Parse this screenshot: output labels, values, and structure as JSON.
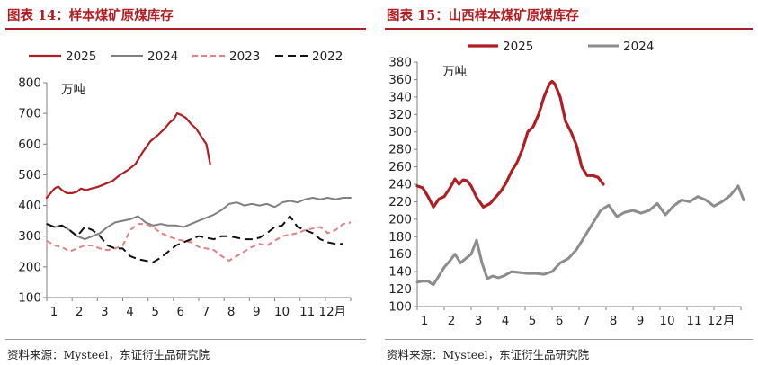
{
  "charts": [
    {
      "title": "图表 14：样本煤矿原煤库存",
      "source": "资料来源：Mysteel，东证衍生品研究院",
      "chart_data": {
        "type": "line",
        "unit_label": "万吨",
        "ylim": [
          100,
          800
        ],
        "yticks": [
          100,
          200,
          300,
          400,
          500,
          600,
          700,
          800
        ],
        "xlim": [
          1,
          13
        ],
        "xtick_labels": [
          "1",
          "2",
          "3",
          "4",
          "5",
          "6",
          "7",
          "8",
          "9",
          "10",
          "11",
          "12月"
        ],
        "grid": false,
        "legend_position": "top",
        "series": [
          {
            "name": "2025",
            "color": "#b01e23",
            "dash": "solid",
            "width": 2.2,
            "x": [
              1,
              1.15,
              1.3,
              1.45,
              1.6,
              1.8,
              2.0,
              2.2,
              2.35,
              2.55,
              2.75,
              3.0,
              3.3,
              3.6,
              3.9,
              4.2,
              4.5,
              4.8,
              5.1,
              5.4,
              5.65,
              5.85,
              6.0,
              6.15,
              6.3,
              6.5,
              6.7,
              6.9,
              7.1,
              7.3,
              7.45
            ],
            "y": [
              425,
              440,
              455,
              462,
              450,
              440,
              440,
              445,
              455,
              450,
              455,
              460,
              470,
              480,
              500,
              515,
              535,
              575,
              610,
              630,
              650,
              670,
              680,
              700,
              695,
              685,
              665,
              650,
              625,
              600,
              535
            ]
          },
          {
            "name": "2024",
            "color": "#7f7f7f",
            "dash": "solid",
            "width": 2,
            "x": [
              1,
              1.3,
              1.6,
              1.9,
              2.2,
              2.5,
              2.8,
              3.1,
              3.4,
              3.7,
              4.0,
              4.3,
              4.6,
              4.9,
              5.2,
              5.5,
              5.8,
              6.1,
              6.4,
              6.7,
              7.0,
              7.3,
              7.6,
              7.9,
              8.2,
              8.5,
              8.8,
              9.1,
              9.4,
              9.7,
              10.0,
              10.3,
              10.6,
              10.9,
              11.2,
              11.5,
              11.8,
              12.1,
              12.4,
              12.7,
              13.0
            ],
            "y": [
              340,
              330,
              335,
              320,
              300,
              290,
              300,
              310,
              330,
              345,
              350,
              355,
              365,
              345,
              335,
              340,
              335,
              335,
              330,
              340,
              350,
              360,
              370,
              385,
              405,
              410,
              400,
              405,
              400,
              405,
              395,
              410,
              415,
              410,
              420,
              425,
              420,
              425,
              420,
              425,
              425
            ]
          },
          {
            "name": "2023",
            "color": "#e08080",
            "dash": "6,4",
            "width": 2,
            "x": [
              1,
              1.3,
              1.6,
              1.9,
              2.2,
              2.5,
              2.8,
              3.1,
              3.4,
              3.7,
              4.0,
              4.3,
              4.6,
              4.9,
              5.2,
              5.5,
              5.8,
              6.1,
              6.4,
              6.7,
              7.0,
              7.3,
              7.6,
              7.9,
              8.2,
              8.5,
              8.8,
              9.1,
              9.4,
              9.7,
              10.0,
              10.3,
              10.6,
              10.9,
              11.2,
              11.5,
              11.8,
              12.1,
              12.4,
              12.7,
              13.0
            ],
            "y": [
              285,
              270,
              265,
              250,
              260,
              270,
              270,
              260,
              255,
              260,
              270,
              320,
              340,
              340,
              330,
              310,
              300,
              290,
              285,
              280,
              265,
              260,
              255,
              235,
              220,
              235,
              250,
              265,
              275,
              270,
              285,
              300,
              305,
              310,
              320,
              325,
              330,
              310,
              320,
              340,
              345
            ]
          },
          {
            "name": "2022",
            "color": "#111111",
            "dash": "9,5",
            "width": 2,
            "x": [
              1,
              1.3,
              1.6,
              1.9,
              2.2,
              2.5,
              2.8,
              3.1,
              3.4,
              3.7,
              4.0,
              4.3,
              4.6,
              4.9,
              5.2,
              5.5,
              5.8,
              6.1,
              6.4,
              6.7,
              7.0,
              7.3,
              7.6,
              7.9,
              8.2,
              8.5,
              8.8,
              9.1,
              9.4,
              9.7,
              10.0,
              10.3,
              10.6,
              10.9,
              11.2,
              11.5,
              11.8,
              12.1,
              12.4,
              12.7
            ],
            "y": [
              340,
              330,
              335,
              320,
              300,
              330,
              320,
              300,
              270,
              260,
              260,
              235,
              225,
              220,
              215,
              230,
              250,
              270,
              280,
              290,
              300,
              295,
              290,
              300,
              300,
              295,
              290,
              290,
              295,
              310,
              330,
              335,
              365,
              330,
              320,
              310,
              290,
              280,
              275,
              275
            ]
          }
        ]
      }
    },
    {
      "title": "图表 15：山西样本煤矿原煤库存",
      "source": "资料来源：Mysteel，东证衍生品研究院",
      "chart_data": {
        "type": "line",
        "unit_label": "万吨",
        "ylim": [
          100,
          380
        ],
        "yticks": [
          100,
          120,
          140,
          160,
          180,
          200,
          220,
          240,
          260,
          280,
          300,
          320,
          340,
          360,
          380
        ],
        "xlim": [
          1,
          13
        ],
        "xtick_labels": [
          "1",
          "2",
          "3",
          "4",
          "5",
          "6",
          "7",
          "8",
          "9",
          "10",
          "11",
          "12月"
        ],
        "grid": false,
        "legend_position": "top",
        "series": [
          {
            "name": "2025",
            "color": "#b01e23",
            "dash": "solid",
            "width": 3.2,
            "x": [
              1,
              1.2,
              1.4,
              1.6,
              1.8,
              2.0,
              2.2,
              2.4,
              2.55,
              2.7,
              2.85,
              3.0,
              3.2,
              3.45,
              3.7,
              3.9,
              4.1,
              4.3,
              4.5,
              4.7,
              4.9,
              5.1,
              5.3,
              5.5,
              5.7,
              5.9,
              6.0,
              6.1,
              6.3,
              6.5,
              6.7,
              6.9,
              7.1,
              7.3,
              7.5,
              7.7,
              7.9
            ],
            "y": [
              238,
              236,
              226,
              214,
              223,
              226,
              235,
              246,
              240,
              245,
              244,
              238,
              225,
              214,
              218,
              225,
              232,
              242,
              255,
              265,
              280,
              300,
              306,
              320,
              340,
              355,
              358,
              355,
              340,
              312,
              300,
              285,
              260,
              250,
              250,
              248,
              240
            ]
          },
          {
            "name": "2024",
            "color": "#8c8c8c",
            "dash": "solid",
            "width": 3,
            "x": [
              1,
              1.2,
              1.4,
              1.6,
              1.8,
              2.0,
              2.2,
              2.4,
              2.6,
              2.8,
              3.0,
              3.2,
              3.4,
              3.6,
              3.8,
              4.0,
              4.2,
              4.5,
              4.8,
              5.1,
              5.4,
              5.7,
              6.0,
              6.3,
              6.6,
              6.9,
              7.2,
              7.5,
              7.8,
              8.1,
              8.4,
              8.7,
              9.0,
              9.3,
              9.6,
              9.9,
              10.2,
              10.5,
              10.8,
              11.1,
              11.4,
              11.7,
              12.0,
              12.3,
              12.6,
              12.9,
              13.1
            ],
            "y": [
              128,
              129,
              129,
              125,
              135,
              145,
              152,
              160,
              150,
              155,
              160,
              176,
              150,
              132,
              135,
              133,
              135,
              140,
              139,
              138,
              138,
              137,
              140,
              150,
              155,
              165,
              180,
              195,
              210,
              216,
              203,
              208,
              210,
              207,
              210,
              218,
              205,
              215,
              222,
              220,
              226,
              222,
              215,
              220,
              227,
              238,
              222
            ]
          }
        ]
      }
    }
  ]
}
